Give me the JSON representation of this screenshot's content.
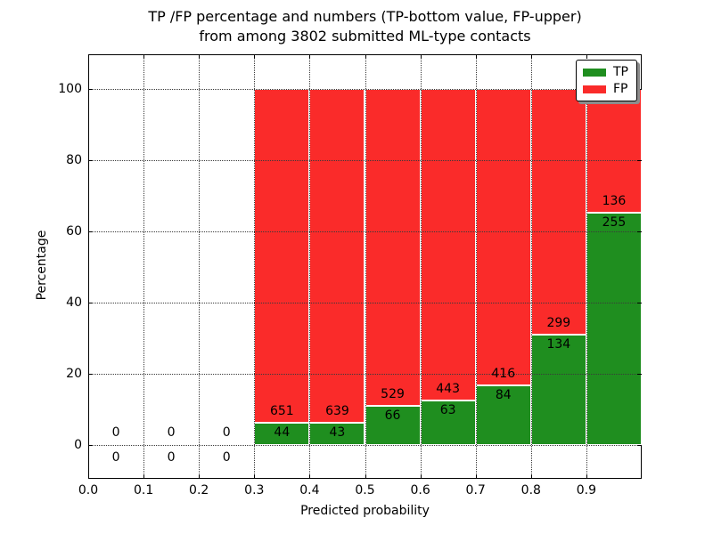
{
  "figure": {
    "title_line1": "TP /FP percentage and numbers (TP-bottom value, FP-upper)",
    "title_line2": "from among 3802 submitted ML-type contacts",
    "background_color": "#ffffff"
  },
  "chart_data": {
    "type": "bar",
    "stacked": true,
    "normalized_to_percent": true,
    "title": "TP /FP percentage and numbers (TP-bottom value, FP-upper)\nfrom among 3802 submitted ML-type contacts",
    "total_submitted_contacts": 3802,
    "xlabel": "Predicted probability",
    "ylabel": "Percentage",
    "xlim": [
      0.0,
      1.0
    ],
    "ylim": [
      -9.5,
      109.5
    ],
    "grid": true,
    "grid_style": "dotted",
    "x_tick_values": [
      0.0,
      0.1,
      0.2,
      0.3,
      0.4,
      0.5,
      0.6,
      0.7,
      0.8,
      0.9
    ],
    "x_tick_labels": [
      "0.0",
      "0.1",
      "0.2",
      "0.3",
      "0.4",
      "0.5",
      "0.6",
      "0.7",
      "0.8",
      "0.9"
    ],
    "y_tick_values": [
      0,
      20,
      40,
      60,
      80,
      100
    ],
    "y_tick_labels": [
      "0",
      "20",
      "40",
      "60",
      "80",
      "100"
    ],
    "colors": {
      "tp": "#1f8e1f",
      "fp": "#fa2b2a",
      "bar_edge": "#ffffff"
    },
    "legend": {
      "position": "upper right",
      "entries": [
        {
          "label": "TP",
          "color": "#1f8e1f"
        },
        {
          "label": "FP",
          "color": "#fa2b2a"
        }
      ]
    },
    "bins": [
      {
        "x_start": 0.0,
        "x_end": 0.1,
        "tp": 0,
        "fp": 0
      },
      {
        "x_start": 0.1,
        "x_end": 0.2,
        "tp": 0,
        "fp": 0
      },
      {
        "x_start": 0.2,
        "x_end": 0.3,
        "tp": 0,
        "fp": 0
      },
      {
        "x_start": 0.3,
        "x_end": 0.4,
        "tp": 44,
        "fp": 651
      },
      {
        "x_start": 0.4,
        "x_end": 0.5,
        "tp": 43,
        "fp": 639
      },
      {
        "x_start": 0.5,
        "x_end": 0.6,
        "tp": 66,
        "fp": 529
      },
      {
        "x_start": 0.6,
        "x_end": 0.7,
        "tp": 63,
        "fp": 443
      },
      {
        "x_start": 0.7,
        "x_end": 0.8,
        "tp": 84,
        "fp": 416
      },
      {
        "x_start": 0.8,
        "x_end": 0.9,
        "tp": 134,
        "fp": 299
      },
      {
        "x_start": 0.9,
        "x_end": 1.0,
        "tp": 255,
        "fp": 136
      }
    ]
  }
}
